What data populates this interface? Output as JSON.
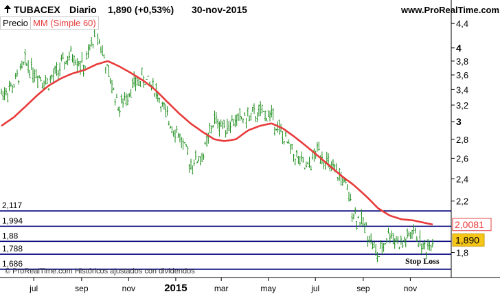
{
  "header": {
    "ticker": "TUBACEX",
    "period": "Diario",
    "last_quote": "1,890 (+0,53%)",
    "date": "30-nov-2015",
    "website": "www.ProRealTime.com"
  },
  "legend": {
    "price_label": "Precio",
    "ma_label": "MM (Simple 60)"
  },
  "footer": {
    "copyright": "© ProRealTime.com Históricos ajustados con dividendos"
  },
  "colors": {
    "price_up": "#1a8c1a",
    "price_down": "#1a8c1a",
    "moving_average": "#e83a3a",
    "level_lines": "#00007a",
    "last_price_badge": "#f5c518",
    "ma_badge_text": "#e83a3a"
  },
  "chart_data": {
    "type": "line",
    "title": "TUBACEX Diario",
    "x_tick_labels": [
      "jul",
      "sep",
      "nov",
      "2015",
      "mar",
      "may",
      "jul",
      "sep",
      "nov"
    ],
    "y_tick_labels": [
      "4,4",
      "4",
      "3,8",
      "3,6",
      "3,4",
      "3,2",
      "3",
      "2,8",
      "2,6",
      "2,4",
      "2,2",
      "1,8"
    ],
    "y_scale": "log",
    "ylim": [
      1.65,
      4.45
    ],
    "x": [
      "2014-05-20",
      "2014-06-05",
      "2014-06-20",
      "2014-07-05",
      "2014-07-20",
      "2014-08-05",
      "2014-08-20",
      "2014-09-05",
      "2014-09-20",
      "2014-10-05",
      "2014-10-20",
      "2014-11-05",
      "2014-11-20",
      "2014-12-05",
      "2014-12-20",
      "2015-01-05",
      "2015-01-20",
      "2015-02-05",
      "2015-02-20",
      "2015-03-05",
      "2015-03-20",
      "2015-04-05",
      "2015-04-20",
      "2015-05-05",
      "2015-05-20",
      "2015-06-05",
      "2015-06-20",
      "2015-07-05",
      "2015-07-20",
      "2015-08-05",
      "2015-08-20",
      "2015-09-05",
      "2015-09-20",
      "2015-10-05",
      "2015-10-20",
      "2015-11-05",
      "2015-11-20",
      "2015-11-30"
    ],
    "series": [
      {
        "name": "Precio",
        "values": [
          3.35,
          3.45,
          3.78,
          3.62,
          3.48,
          3.72,
          3.9,
          3.7,
          4.3,
          3.62,
          3.15,
          3.45,
          3.55,
          3.42,
          3.05,
          2.85,
          2.55,
          2.62,
          3.02,
          2.95,
          3.02,
          3.05,
          3.1,
          3.08,
          2.82,
          2.62,
          2.48,
          2.7,
          2.5,
          2.4,
          2.1,
          1.98,
          1.76,
          1.95,
          1.85,
          1.95,
          1.82,
          1.89
        ]
      },
      {
        "name": "MM (Simple 60)",
        "values": [
          2.95,
          3.05,
          3.18,
          3.32,
          3.45,
          3.55,
          3.62,
          3.67,
          3.75,
          3.8,
          3.72,
          3.62,
          3.52,
          3.4,
          3.25,
          3.1,
          2.98,
          2.88,
          2.8,
          2.78,
          2.8,
          2.9,
          2.95,
          2.98,
          2.92,
          2.82,
          2.72,
          2.62,
          2.52,
          2.42,
          2.34,
          2.24,
          2.14,
          2.08,
          2.05,
          2.04,
          2.02,
          2.008
        ]
      }
    ],
    "levels": [
      {
        "label": "2,117",
        "value": 2.117
      },
      {
        "label": "1,994",
        "value": 1.994
      },
      {
        "label": "1,88",
        "value": 1.88
      },
      {
        "label": "1,788",
        "value": 1.788
      },
      {
        "label": "1,686",
        "value": 1.686
      }
    ],
    "last_value_labels": {
      "ma": "2,0081",
      "price": "1,890"
    },
    "annotations": [
      {
        "text": "Stop Loss",
        "x": "2015-10-20",
        "y": 1.76
      }
    ],
    "grid": false,
    "legend_position": "top-left"
  }
}
